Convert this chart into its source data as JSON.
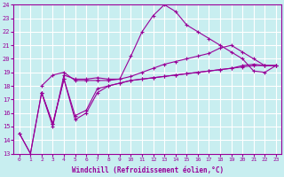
{
  "xlabel": "Windchill (Refroidissement éolien,°C)",
  "bg_color": "#c8eef0",
  "line_color": "#990099",
  "grid_color": "#ffffff",
  "xlim": [
    -0.5,
    23.5
  ],
  "ylim": [
    13,
    24
  ],
  "xticks": [
    0,
    1,
    2,
    3,
    4,
    5,
    6,
    7,
    8,
    9,
    10,
    11,
    12,
    13,
    14,
    15,
    16,
    17,
    18,
    19,
    20,
    21,
    22,
    23
  ],
  "yticks": [
    13,
    14,
    15,
    16,
    17,
    18,
    19,
    20,
    21,
    22,
    23,
    24
  ],
  "series": {
    "line1": {
      "x": [
        0,
        1,
        2,
        3,
        4,
        5,
        6,
        7,
        8,
        9,
        10,
        11,
        12,
        13,
        14,
        15,
        16,
        17,
        18,
        19,
        20,
        21,
        22,
        23
      ],
      "y": [
        14.5,
        13.0,
        17.5,
        15.0,
        18.8,
        18.5,
        18.5,
        18.6,
        18.5,
        18.5,
        20.2,
        22.0,
        23.2,
        24.0,
        23.5,
        22.5,
        22.0,
        21.5,
        21.0,
        20.5,
        20.0,
        19.1,
        19.0,
        19.5
      ]
    },
    "line2": {
      "x": [
        2,
        3,
        4,
        5,
        6,
        7,
        8,
        9,
        10,
        11,
        12,
        13,
        14,
        15,
        16,
        17,
        18,
        19,
        20,
        21,
        22,
        23
      ],
      "y": [
        18.0,
        18.8,
        19.0,
        18.4,
        18.4,
        18.4,
        18.4,
        18.5,
        18.7,
        19.0,
        19.3,
        19.6,
        19.8,
        20.0,
        20.2,
        20.4,
        20.8,
        21.0,
        20.5,
        20.0,
        19.5,
        19.5
      ]
    },
    "line3": {
      "x": [
        0,
        1,
        2,
        3,
        4,
        5,
        6,
        7,
        8,
        9,
        10,
        11,
        12,
        13,
        14,
        15,
        16,
        17,
        18,
        19,
        20,
        21,
        22,
        23
      ],
      "y": [
        14.5,
        13.0,
        17.5,
        15.2,
        18.5,
        15.5,
        16.0,
        17.5,
        18.0,
        18.2,
        18.4,
        18.5,
        18.6,
        18.7,
        18.8,
        18.9,
        19.0,
        19.1,
        19.2,
        19.3,
        19.4,
        19.5,
        19.5,
        19.5
      ]
    },
    "line4": {
      "x": [
        2,
        3,
        4,
        5,
        6,
        7,
        8,
        9,
        10,
        11,
        12,
        13,
        14,
        15,
        16,
        17,
        18,
        19,
        20,
        21,
        22,
        23
      ],
      "y": [
        17.5,
        15.2,
        18.5,
        15.8,
        16.2,
        17.8,
        18.0,
        18.2,
        18.4,
        18.5,
        18.6,
        18.7,
        18.8,
        18.9,
        19.0,
        19.1,
        19.2,
        19.3,
        19.5,
        19.6,
        19.5,
        19.5
      ]
    }
  }
}
